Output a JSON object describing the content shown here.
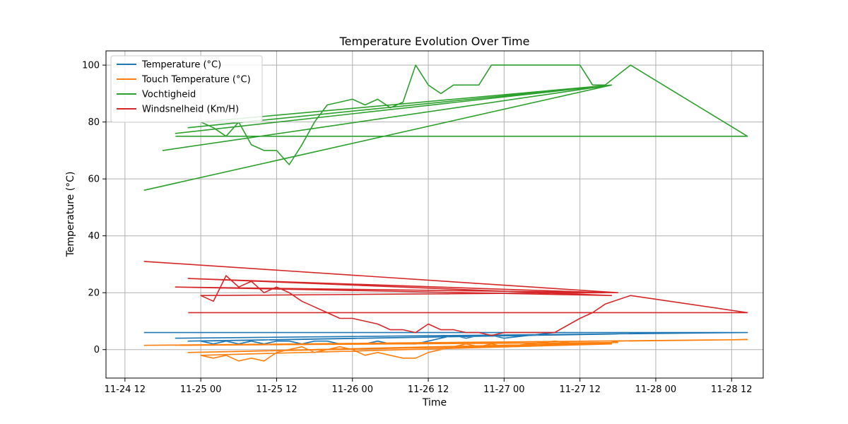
{
  "chart_data": {
    "type": "line",
    "title": "Temperature Evolution Over Time",
    "xlabel": "Time",
    "ylabel": "Temperature (°C)",
    "xlim": [
      "2024-11-24 09:00",
      "2024-11-28 17:00"
    ],
    "ylim": [
      -10,
      105
    ],
    "x_tick_labels": [
      "11-24 12",
      "11-25 00",
      "11-25 12",
      "11-26 00",
      "11-26 12",
      "11-27 00",
      "11-27 12",
      "11-28 00",
      "11-28 12"
    ],
    "x_ticks": [
      "2024-11-24 12:00",
      "2024-11-25 00:00",
      "2024-11-25 12:00",
      "2024-11-26 00:00",
      "2024-11-26 12:00",
      "2024-11-27 00:00",
      "2024-11-27 12:00",
      "2024-11-28 00:00",
      "2024-11-28 12:00"
    ],
    "y_ticks": [
      0,
      20,
      40,
      60,
      80,
      100
    ],
    "grid": true,
    "legend_position": "top-left",
    "series": [
      {
        "name": "Temperature (°C)",
        "color": "#1f77b4",
        "x": [
          "2024-11-24 15:00",
          "2024-11-28 14:30",
          "2024-11-24 20:00",
          "2024-11-27 18:00",
          "2024-11-24 22:00",
          "2024-11-27 17:00",
          "2024-11-25 00:00",
          "2024-11-25 02:00",
          "2024-11-25 04:00",
          "2024-11-25 06:00",
          "2024-11-25 08:00",
          "2024-11-25 10:00",
          "2024-11-25 12:00",
          "2024-11-25 14:00",
          "2024-11-25 16:00",
          "2024-11-25 18:00",
          "2024-11-25 20:00",
          "2024-11-25 22:00",
          "2024-11-26 00:00",
          "2024-11-26 02:00",
          "2024-11-26 04:00",
          "2024-11-26 06:00",
          "2024-11-26 08:00",
          "2024-11-26 10:00",
          "2024-11-26 12:00",
          "2024-11-26 14:00",
          "2024-11-26 16:00",
          "2024-11-26 18:00",
          "2024-11-26 20:00",
          "2024-11-26 22:00",
          "2024-11-27 00:00",
          "2024-11-27 04:00",
          "2024-11-27 08:00",
          "2024-11-27 12:00",
          "2024-11-27 16:00",
          "2024-11-27 18:00",
          "2024-11-28 14:30"
        ],
        "y": [
          6,
          6,
          4,
          5.5,
          3,
          5.5,
          3,
          2,
          3,
          2,
          3,
          2,
          3,
          3,
          2,
          3,
          3,
          2,
          2,
          2,
          3,
          2,
          2,
          2,
          3,
          4,
          5,
          4,
          5,
          5,
          4,
          5,
          6,
          6,
          6,
          6,
          6
        ]
      },
      {
        "name": "Touch Temperature (°C)",
        "color": "#ff7f0e",
        "x": [
          "2024-11-24 15:00",
          "2024-11-28 14:30",
          "2024-11-24 20:00",
          "2024-11-27 18:00",
          "2024-11-24 22:00",
          "2024-11-27 17:00",
          "2024-11-25 00:00",
          "2024-11-25 02:00",
          "2024-11-25 04:00",
          "2024-11-25 06:00",
          "2024-11-25 08:00",
          "2024-11-25 10:00",
          "2024-11-25 12:00",
          "2024-11-25 14:00",
          "2024-11-25 16:00",
          "2024-11-25 18:00",
          "2024-11-25 20:00",
          "2024-11-25 22:00",
          "2024-11-26 00:00",
          "2024-11-26 02:00",
          "2024-11-26 04:00",
          "2024-11-26 06:00",
          "2024-11-26 08:00",
          "2024-11-26 10:00",
          "2024-11-26 12:00",
          "2024-11-26 14:00",
          "2024-11-26 16:00",
          "2024-11-26 18:00",
          "2024-11-26 20:00",
          "2024-11-26 22:00",
          "2024-11-27 00:00",
          "2024-11-27 04:00",
          "2024-11-27 08:00",
          "2024-11-27 12:00",
          "2024-11-27 16:00",
          "2024-11-27 18:00",
          "2024-11-28 14:30"
        ],
        "y": [
          1.5,
          3.5,
          1.5,
          2.5,
          -1,
          2,
          -2,
          -3,
          -2,
          -4,
          -3,
          -4,
          -1,
          0,
          1,
          -1,
          0,
          1,
          0,
          -2,
          -1,
          -2,
          -3,
          -3,
          -1,
          0,
          1,
          2,
          1,
          2,
          1,
          2,
          3,
          2,
          2,
          3,
          3.5
        ]
      },
      {
        "name": "Vochtigheid",
        "color": "#2ca02c",
        "x": [
          "2024-11-24 15:00",
          "2024-11-27 17:00",
          "2024-11-24 18:00",
          "2024-11-27 17:00",
          "2024-11-24 20:00",
          "2024-11-27 17:00",
          "2024-11-24 22:00",
          "2024-11-27 17:00",
          "2024-11-25 00:00",
          "2024-11-25 02:00",
          "2024-11-25 04:00",
          "2024-11-25 06:00",
          "2024-11-25 08:00",
          "2024-11-25 10:00",
          "2024-11-25 12:00",
          "2024-11-25 14:00",
          "2024-11-25 16:00",
          "2024-11-25 18:00",
          "2024-11-25 20:00",
          "2024-11-25 22:00",
          "2024-11-26 00:00",
          "2024-11-26 02:00",
          "2024-11-26 04:00",
          "2024-11-26 06:00",
          "2024-11-26 08:00",
          "2024-11-26 10:00",
          "2024-11-26 12:00",
          "2024-11-26 14:00",
          "2024-11-26 16:00",
          "2024-11-26 18:00",
          "2024-11-26 20:00",
          "2024-11-26 22:00",
          "2024-11-27 00:00",
          "2024-11-27 04:00",
          "2024-11-27 08:00",
          "2024-11-27 12:00",
          "2024-11-27 14:00",
          "2024-11-27 16:00",
          "2024-11-27 20:00",
          "2024-11-28 14:30",
          "2024-11-24 20:00"
        ],
        "y": [
          56,
          93,
          70,
          93,
          76,
          93,
          78,
          93,
          80,
          78,
          75,
          80,
          72,
          70,
          70,
          65,
          72,
          80,
          86,
          87,
          88,
          86,
          88,
          85,
          87,
          100,
          93,
          90,
          93,
          93,
          93,
          100,
          100,
          100,
          100,
          100,
          93,
          93,
          100,
          75,
          75
        ]
      },
      {
        "name": "Windsnelheid (Km/H)",
        "color": "#d62728",
        "x": [
          "2024-11-24 15:00",
          "2024-11-27 18:00",
          "2024-11-24 20:00",
          "2024-11-27 17:00",
          "2024-11-24 22:00",
          "2024-11-27 16:00",
          "2024-11-25 00:00",
          "2024-11-25 02:00",
          "2024-11-25 04:00",
          "2024-11-25 06:00",
          "2024-11-25 08:00",
          "2024-11-25 10:00",
          "2024-11-25 12:00",
          "2024-11-25 14:00",
          "2024-11-25 16:00",
          "2024-11-25 18:00",
          "2024-11-25 20:00",
          "2024-11-25 22:00",
          "2024-11-26 00:00",
          "2024-11-26 02:00",
          "2024-11-26 04:00",
          "2024-11-26 06:00",
          "2024-11-26 08:00",
          "2024-11-26 10:00",
          "2024-11-26 12:00",
          "2024-11-26 14:00",
          "2024-11-26 16:00",
          "2024-11-26 18:00",
          "2024-11-26 20:00",
          "2024-11-26 22:00",
          "2024-11-27 00:00",
          "2024-11-27 04:00",
          "2024-11-27 08:00",
          "2024-11-27 12:00",
          "2024-11-27 14:00",
          "2024-11-27 16:00",
          "2024-11-27 20:00",
          "2024-11-28 14:30",
          "2024-11-24 22:00"
        ],
        "y": [
          31,
          20,
          22,
          19,
          25,
          20,
          19,
          17,
          26,
          22,
          24,
          20,
          22,
          20,
          17,
          15,
          13,
          11,
          11,
          10,
          9,
          7,
          7,
          6,
          9,
          7,
          7,
          6,
          6,
          5,
          6,
          6,
          6,
          11,
          13,
          16,
          19,
          13,
          13
        ]
      }
    ]
  }
}
